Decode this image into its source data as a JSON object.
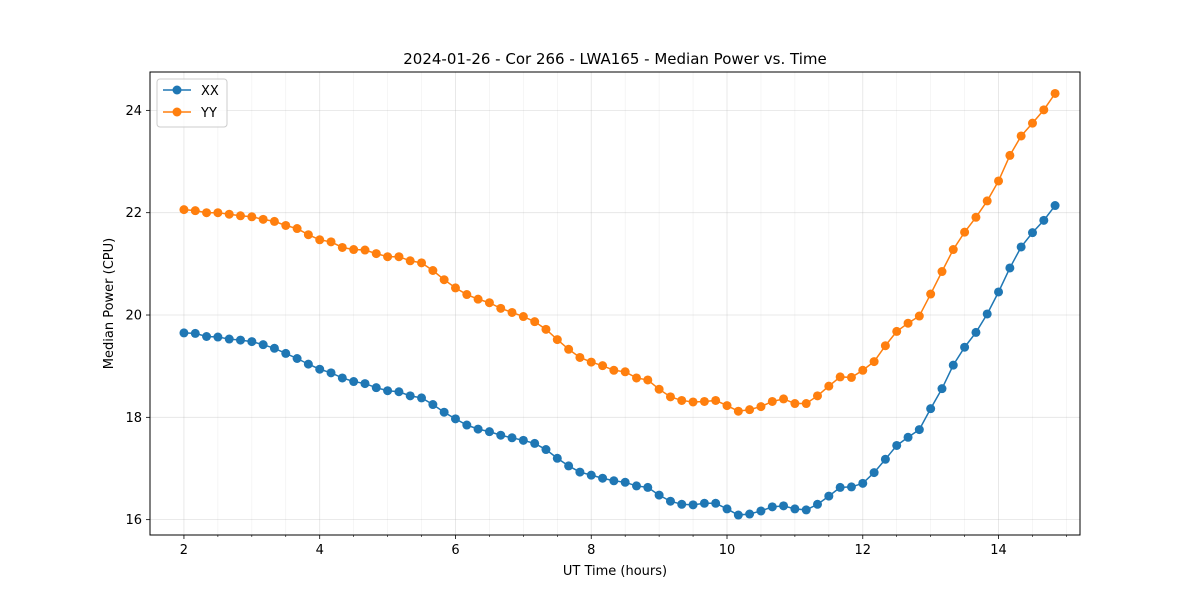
{
  "chart_data": {
    "type": "line",
    "title": "2024-01-26 - Cor 266 - LWA165 - Median Power vs. Time",
    "xlabel": "UT Time (hours)",
    "ylabel": "Median Power (CPU)",
    "xlim": [
      1.5,
      15.2
    ],
    "ylim": [
      15.7,
      24.75
    ],
    "xticks": [
      2,
      4,
      6,
      8,
      10,
      12,
      14
    ],
    "xticks_minor": [
      2.5,
      3,
      3.5,
      4.5,
      5,
      5.5,
      6.5,
      7,
      7.5,
      8.5,
      9,
      9.5,
      10.5,
      11,
      11.5,
      12.5,
      13,
      13.5,
      14.5,
      15
    ],
    "yticks": [
      16,
      18,
      20,
      22,
      24
    ],
    "grid": true,
    "legend_position": "top-left",
    "x": [
      2.0,
      2.167,
      2.333,
      2.5,
      2.667,
      2.833,
      3.0,
      3.167,
      3.333,
      3.5,
      3.667,
      3.833,
      4.0,
      4.167,
      4.333,
      4.5,
      4.667,
      4.833,
      5.0,
      5.167,
      5.333,
      5.5,
      5.667,
      5.833,
      6.0,
      6.167,
      6.333,
      6.5,
      6.667,
      6.833,
      7.0,
      7.167,
      7.333,
      7.5,
      7.667,
      7.833,
      8.0,
      8.167,
      8.333,
      8.5,
      8.667,
      8.833,
      9.0,
      9.167,
      9.333,
      9.5,
      9.667,
      9.833,
      10.0,
      10.167,
      10.333,
      10.5,
      10.667,
      10.833,
      11.0,
      11.167,
      11.333,
      11.5,
      11.667,
      11.833,
      12.0,
      12.167,
      12.333,
      12.5,
      12.667,
      12.833,
      13.0,
      13.167,
      13.333,
      13.5,
      13.667,
      13.833,
      14.0,
      14.167,
      14.333,
      14.5,
      14.667,
      14.833
    ],
    "series": [
      {
        "name": "XX",
        "color": "#1f77b4",
        "values": [
          19.65,
          19.64,
          19.58,
          19.57,
          19.53,
          19.51,
          19.48,
          19.42,
          19.35,
          19.25,
          19.15,
          19.04,
          18.94,
          18.87,
          18.77,
          18.7,
          18.66,
          18.58,
          18.52,
          18.5,
          18.42,
          18.38,
          18.25,
          18.1,
          17.97,
          17.85,
          17.77,
          17.72,
          17.65,
          17.6,
          17.55,
          17.49,
          17.37,
          17.2,
          17.05,
          16.93,
          16.87,
          16.81,
          16.76,
          16.73,
          16.66,
          16.63,
          16.48,
          16.36,
          16.3,
          16.29,
          16.32,
          16.32,
          16.21,
          16.09,
          16.11,
          16.17,
          16.25,
          16.27,
          16.21,
          16.19,
          16.3,
          16.46,
          16.63,
          16.64,
          16.71,
          16.92,
          17.18,
          17.45,
          17.61,
          17.76,
          18.17,
          18.56,
          19.02,
          19.37,
          19.66,
          20.02,
          20.45,
          20.92,
          21.33,
          21.61,
          21.85,
          22.14
        ]
      },
      {
        "name": "YY",
        "color": "#ff7f0e",
        "values": [
          22.06,
          22.04,
          22.0,
          22.0,
          21.97,
          21.94,
          21.92,
          21.87,
          21.83,
          21.75,
          21.69,
          21.57,
          21.47,
          21.43,
          21.32,
          21.28,
          21.27,
          21.2,
          21.14,
          21.14,
          21.06,
          21.02,
          20.87,
          20.69,
          20.53,
          20.4,
          20.31,
          20.24,
          20.13,
          20.05,
          19.97,
          19.87,
          19.72,
          19.52,
          19.33,
          19.17,
          19.08,
          19.01,
          18.92,
          18.89,
          18.77,
          18.73,
          18.55,
          18.4,
          18.33,
          18.3,
          18.31,
          18.33,
          18.23,
          18.12,
          18.15,
          18.21,
          18.31,
          18.36,
          18.27,
          18.27,
          18.42,
          18.61,
          18.79,
          18.78,
          18.92,
          19.09,
          19.4,
          19.68,
          19.84,
          19.98,
          20.41,
          20.85,
          21.28,
          21.62,
          21.91,
          22.23,
          22.62,
          23.12,
          23.5,
          23.75,
          24.01,
          24.33
        ]
      }
    ]
  }
}
